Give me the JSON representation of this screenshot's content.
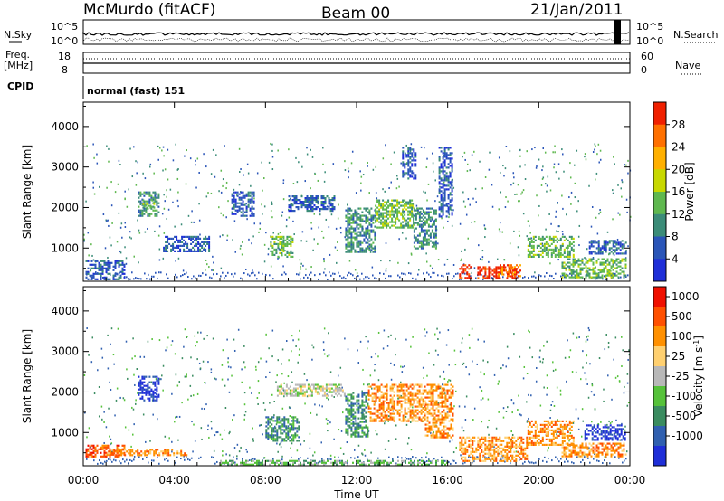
{
  "header": {
    "station": "McMurdo (fitACF)",
    "beam": "Beam 00",
    "date": "21/Jan/2011"
  },
  "top_panels": {
    "nsky_label": "N.Sky",
    "nsearch_label": "N.Search",
    "nsky_ticks": [
      "10^5",
      "10^0"
    ],
    "freq_label": "Freq.",
    "freq_unit": "[MHz]",
    "freq_ticks": [
      "18",
      "8"
    ],
    "nave_label": "Nave",
    "nave_ticks": [
      "60",
      "0"
    ],
    "cpid_label": "CPID",
    "cpid_value": "normal (fast) 151"
  },
  "chart_data": [
    {
      "type": "heatmap",
      "panel": "power",
      "xlabel": "",
      "ylabel": "Slant Range [km]",
      "ylim": [
        180,
        4600
      ],
      "yticks": [
        1000,
        2000,
        3000,
        4000
      ],
      "xlim": [
        0,
        24
      ],
      "colorbar": {
        "label": "Power [dB]",
        "ticks": [
          "4",
          "8",
          "12",
          "16",
          "20",
          "24",
          "28"
        ],
        "colors": [
          "#1f2fd8",
          "#2a55b8",
          "#3b8c78",
          "#5fb84f",
          "#c8d800",
          "#ffb000",
          "#ff7000",
          "#f02000"
        ]
      },
      "regions": [
        {
          "t0": 0.1,
          "t1": 1.8,
          "r0": 250,
          "r1": 700,
          "level": 1
        },
        {
          "t0": 2.4,
          "t1": 3.3,
          "r0": 1800,
          "r1": 2400,
          "level": 2
        },
        {
          "t0": 2.6,
          "t1": 3.1,
          "r0": 2000,
          "r1": 2200,
          "level": 3
        },
        {
          "t0": 3.5,
          "t1": 5.5,
          "r0": 900,
          "r1": 1300,
          "level": 1
        },
        {
          "t0": 6.5,
          "t1": 7.5,
          "r0": 1800,
          "r1": 2400,
          "level": 1
        },
        {
          "t0": 8.2,
          "t1": 9.2,
          "r0": 800,
          "r1": 1300,
          "level": 3
        },
        {
          "t0": 9.0,
          "t1": 11.0,
          "r0": 1900,
          "r1": 2300,
          "level": 1
        },
        {
          "t0": 11.5,
          "t1": 12.8,
          "r0": 900,
          "r1": 2000,
          "level": 2
        },
        {
          "t0": 12.8,
          "t1": 14.5,
          "r0": 1500,
          "r1": 2200,
          "level": 3
        },
        {
          "t0": 14.5,
          "t1": 15.5,
          "r0": 1000,
          "r1": 2000,
          "level": 2
        },
        {
          "t0": 14.0,
          "t1": 14.6,
          "r0": 2700,
          "r1": 3500,
          "level": 1
        },
        {
          "t0": 15.6,
          "t1": 16.2,
          "r0": 1800,
          "r1": 3500,
          "level": 1
        },
        {
          "t0": 16.5,
          "t1": 17.0,
          "r0": 250,
          "r1": 600,
          "level": 7
        },
        {
          "t0": 17.3,
          "t1": 19.0,
          "r0": 250,
          "r1": 550,
          "level": 7
        },
        {
          "t0": 18.2,
          "t1": 19.2,
          "r0": 300,
          "r1": 600,
          "level": 6
        },
        {
          "t0": 19.5,
          "t1": 21.5,
          "r0": 800,
          "r1": 1300,
          "level": 3
        },
        {
          "t0": 21.0,
          "t1": 23.8,
          "r0": 300,
          "r1": 750,
          "level": 3
        },
        {
          "t0": 22.2,
          "t1": 23.8,
          "r0": 850,
          "r1": 1200,
          "level": 1
        }
      ]
    },
    {
      "type": "heatmap",
      "panel": "velocity",
      "xlabel": "Time UT",
      "ylabel": "Slant Range [km]",
      "ylim": [
        180,
        4600
      ],
      "yticks": [
        1000,
        2000,
        3000,
        4000
      ],
      "xlim": [
        0,
        24
      ],
      "xticks": [
        "00:00",
        "04:00",
        "08:00",
        "12:00",
        "16:00",
        "20:00",
        "00:00"
      ],
      "colorbar": {
        "label": "Velocity [m s^-1]",
        "ticks": [
          "1000",
          "500",
          "100",
          "25",
          "-25",
          "-100",
          "-500",
          "-1000"
        ],
        "colors": [
          "#1f2fd8",
          "#3060b0",
          "#3a8c60",
          "#56c23a",
          "#b8b8b8",
          "#ffd070",
          "#ff9000",
          "#ff5000",
          "#f01000"
        ]
      },
      "regions": [
        {
          "t0": 0.1,
          "t1": 1.8,
          "r0": 400,
          "r1": 700,
          "level": 7
        },
        {
          "t0": 2.4,
          "t1": 3.3,
          "r0": 1800,
          "r1": 2400,
          "level": 0
        },
        {
          "t0": 1.0,
          "t1": 4.5,
          "r0": 450,
          "r1": 600,
          "level": 6
        },
        {
          "t0": 8.0,
          "t1": 9.5,
          "r0": 800,
          "r1": 1400,
          "level": 2
        },
        {
          "t0": 8.5,
          "t1": 11.5,
          "r0": 1900,
          "r1": 2200,
          "level": 4
        },
        {
          "t0": 11.5,
          "t1": 12.5,
          "r0": 900,
          "r1": 2000,
          "level": 2
        },
        {
          "t0": 12.5,
          "t1": 15.0,
          "r0": 1300,
          "r1": 2200,
          "level": 6
        },
        {
          "t0": 15.0,
          "t1": 16.2,
          "r0": 900,
          "r1": 2200,
          "level": 6
        },
        {
          "t0": 16.5,
          "t1": 19.5,
          "r0": 300,
          "r1": 900,
          "level": 6
        },
        {
          "t0": 19.5,
          "t1": 21.5,
          "r0": 700,
          "r1": 1300,
          "level": 6
        },
        {
          "t0": 21.0,
          "t1": 23.8,
          "r0": 400,
          "r1": 750,
          "level": 6
        },
        {
          "t0": 22.0,
          "t1": 23.8,
          "r0": 800,
          "r1": 1200,
          "level": 0
        },
        {
          "t0": 6.0,
          "t1": 16.0,
          "r0": 200,
          "r1": 320,
          "level": 3
        }
      ]
    }
  ]
}
